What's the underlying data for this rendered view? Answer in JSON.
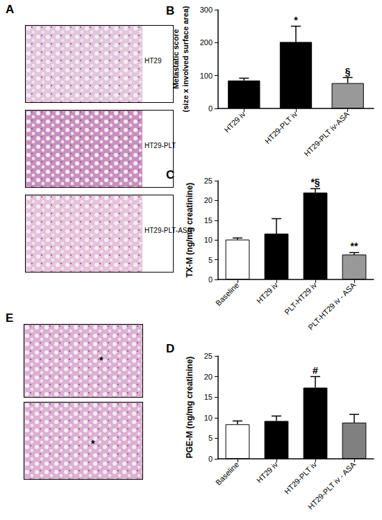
{
  "images": {
    "A": {
      "panel_label": "A",
      "labels": [
        "HT29",
        "HT29-PLT",
        "HT29-PLT-ASA"
      ]
    },
    "E": {
      "panel_label": "E",
      "marks": [
        "*",
        "*"
      ]
    }
  },
  "chart_data": [
    {
      "type": "bar",
      "panel_label": "B",
      "ylabel": "Metastatic score\n(size x involved surface area)",
      "categories": [
        "HT29 iv",
        "HT29-PLT iv",
        "HT29-PLT iv-ASA"
      ],
      "values": [
        85,
        202,
        77
      ],
      "error": [
        7,
        48,
        17
      ],
      "colors": [
        "#000000",
        "#000000",
        "#999999"
      ],
      "significance": [
        null,
        "*",
        "§"
      ],
      "ylim": [
        0,
        300
      ],
      "yticks": [
        0,
        100,
        200,
        300
      ],
      "grid": false
    },
    {
      "type": "bar",
      "panel_label": "C",
      "ylabel": "TX-M (ng/mg creatinine)",
      "categories": [
        "Baseline",
        "HT29 iv",
        "PLT-HT29 iv",
        "PLT-HT29 iv - ASA"
      ],
      "values": [
        10.1,
        11.6,
        22,
        6.3
      ],
      "error": [
        0.4,
        3.8,
        1.0,
        0.5
      ],
      "colors": [
        "#ffffff",
        "#000000",
        "#000000",
        "#999999"
      ],
      "significance": [
        null,
        null,
        "*§",
        "**"
      ],
      "ylim": [
        0,
        25
      ],
      "yticks": [
        0,
        5,
        10,
        15,
        20,
        25
      ],
      "grid": false
    },
    {
      "type": "bar",
      "panel_label": "D",
      "ylabel": "PGE-M (ng/mg creatinine)",
      "categories": [
        "Baseline",
        "HT29 iv",
        "HT29-PLT iv",
        "HT29-PLT iv - ASA"
      ],
      "values": [
        8.4,
        9.2,
        17.3,
        8.8
      ],
      "error": [
        0.8,
        1.2,
        2.7,
        2.0
      ],
      "colors": [
        "#ffffff",
        "#000000",
        "#000000",
        "#808080"
      ],
      "significance": [
        null,
        null,
        "#",
        null
      ],
      "ylim": [
        0,
        25
      ],
      "yticks": [
        0,
        5,
        10,
        15,
        20,
        25
      ],
      "grid": false
    }
  ]
}
